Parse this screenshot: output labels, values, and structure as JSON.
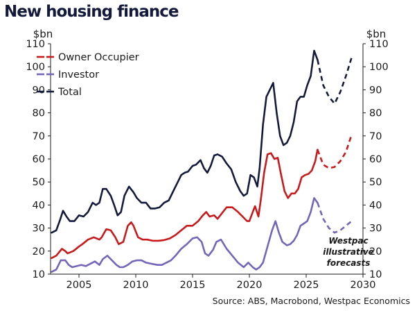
{
  "chart_data": {
    "type": "line",
    "title": "New housing finance",
    "y_unit_left": "$bn",
    "y_unit_right": "$bn",
    "ylim": [
      10,
      110
    ],
    "y_ticks": [
      10,
      20,
      30,
      40,
      50,
      60,
      70,
      80,
      90,
      100,
      110
    ],
    "xlim": [
      2002.5,
      2030
    ],
    "x_ticks": [
      2005,
      2010,
      2015,
      2020,
      2025,
      2030
    ],
    "grid": false,
    "legend_position": "top-left",
    "annotation": [
      "Westpac",
      "illustrative",
      "forecasts"
    ],
    "source": "Source: ABS, Macrobond, Westpac Economics",
    "series": [
      {
        "name": "Owner Occupier",
        "color": "#c8191b",
        "x": [
          2002.6,
          2003.0,
          2003.5,
          2003.8,
          2004.0,
          2004.5,
          2005.0,
          2005.3,
          2005.8,
          2006.3,
          2006.8,
          2007.0,
          2007.4,
          2007.8,
          2008.2,
          2008.5,
          2008.9,
          2009.3,
          2009.6,
          2009.8,
          2010.2,
          2010.6,
          2011.0,
          2011.5,
          2012.0,
          2012.5,
          2013.0,
          2013.5,
          2014.0,
          2014.5,
          2015.0,
          2015.5,
          2015.9,
          2016.2,
          2016.5,
          2016.9,
          2017.2,
          2017.6,
          2018.0,
          2018.5,
          2019.0,
          2019.4,
          2019.8,
          2020.0,
          2020.3,
          2020.5,
          2020.8,
          2021.0,
          2021.3,
          2021.6,
          2021.9,
          2022.2,
          2022.5,
          2022.8,
          2023.1,
          2023.4,
          2023.7,
          2024.0,
          2024.3,
          2024.6,
          2024.9,
          2025.2,
          2025.5,
          2025.8,
          2026.0
        ],
        "values": [
          17,
          18,
          21,
          20,
          19,
          20,
          22,
          23,
          25,
          26,
          25,
          26,
          29.5,
          29,
          26,
          23,
          24,
          31,
          32.5,
          31,
          26,
          25,
          25,
          24.5,
          24.5,
          24.8,
          25.5,
          27,
          29,
          31,
          31,
          33,
          35.5,
          37,
          35,
          35.5,
          34,
          36.5,
          39,
          39,
          37,
          35,
          33,
          33,
          37,
          39.5,
          35,
          42,
          54,
          62,
          62.5,
          60,
          60.5,
          53,
          46,
          43,
          45,
          45,
          47,
          52,
          53,
          53.5,
          55,
          59,
          64
        ],
        "forecast": {
          "x": [
            2026.0,
            2026.5,
            2027.0,
            2027.5,
            2028.0,
            2028.5,
            2029.0
          ],
          "values": [
            64,
            57.5,
            56,
            56.5,
            59,
            63,
            70.5
          ]
        }
      },
      {
        "name": "Investor",
        "color": "#7565b8",
        "x": [
          2002.6,
          2003.0,
          2003.4,
          2003.8,
          2004.1,
          2004.4,
          2004.8,
          2005.2,
          2005.6,
          2006.0,
          2006.4,
          2006.8,
          2007.1,
          2007.5,
          2007.9,
          2008.3,
          2008.6,
          2008.9,
          2009.3,
          2009.7,
          2010.1,
          2010.5,
          2010.9,
          2011.4,
          2011.9,
          2012.3,
          2012.7,
          2013.1,
          2013.5,
          2014.0,
          2014.5,
          2015.0,
          2015.4,
          2015.8,
          2016.1,
          2016.4,
          2016.8,
          2017.1,
          2017.5,
          2018.0,
          2018.5,
          2019.0,
          2019.5,
          2019.9,
          2020.3,
          2020.6,
          2020.9,
          2021.2,
          2021.6,
          2022.0,
          2022.3,
          2022.6,
          2022.9,
          2023.3,
          2023.6,
          2023.9,
          2024.2,
          2024.5,
          2024.8,
          2025.1,
          2025.4,
          2025.7,
          2026.0
        ],
        "values": [
          11,
          12,
          16,
          16,
          14,
          13,
          13.5,
          14,
          13.5,
          14.5,
          15.5,
          14,
          16.5,
          18,
          16,
          14,
          13,
          13,
          14,
          15.5,
          16,
          16,
          15,
          14.5,
          14,
          14,
          15,
          16,
          18,
          21,
          23,
          25.5,
          26,
          24,
          19,
          18,
          20.5,
          24,
          25,
          21,
          18,
          15,
          13,
          15,
          13,
          12,
          13,
          15,
          22,
          29,
          33,
          28,
          24,
          22.5,
          23,
          24.5,
          27,
          31,
          32,
          33,
          37,
          43,
          41
        ],
        "forecast": {
          "x": [
            2026.0,
            2026.5,
            2027.0,
            2027.5,
            2028.0,
            2028.5,
            2029.0
          ],
          "values": [
            41,
            34,
            30,
            28,
            29,
            31,
            33
          ]
        }
      },
      {
        "name": "Total",
        "color": "#141a3c",
        "x": [
          2002.6,
          2003.0,
          2003.3,
          2003.6,
          2003.9,
          2004.2,
          2004.6,
          2005.0,
          2005.4,
          2005.8,
          2006.2,
          2006.5,
          2006.8,
          2007.1,
          2007.4,
          2007.8,
          2008.1,
          2008.4,
          2008.7,
          2009.0,
          2009.4,
          2009.8,
          2010.1,
          2010.5,
          2010.9,
          2011.3,
          2011.7,
          2012.1,
          2012.5,
          2012.9,
          2013.3,
          2013.7,
          2014.0,
          2014.3,
          2014.6,
          2015.0,
          2015.3,
          2015.7,
          2016.0,
          2016.3,
          2016.6,
          2016.9,
          2017.2,
          2017.6,
          2018.0,
          2018.4,
          2018.8,
          2019.2,
          2019.5,
          2019.8,
          2020.1,
          2020.4,
          2020.7,
          2020.9,
          2021.2,
          2021.5,
          2021.8,
          2022.1,
          2022.4,
          2022.7,
          2023.0,
          2023.3,
          2023.6,
          2023.9,
          2024.2,
          2024.5,
          2024.8,
          2025.1,
          2025.4,
          2025.7,
          2026.0
        ],
        "values": [
          28,
          29,
          33,
          37.5,
          35,
          33,
          33,
          35.5,
          35,
          37,
          41,
          40,
          41,
          47,
          47,
          44,
          40,
          35.5,
          37,
          44,
          48,
          45.5,
          43,
          41,
          41,
          38.5,
          38.5,
          39,
          41,
          42,
          46,
          50,
          53,
          54,
          54.5,
          57,
          57.5,
          59.5,
          56,
          54,
          57,
          61.5,
          62,
          61,
          58,
          55.5,
          50,
          46,
          44,
          45,
          53,
          52,
          48,
          56,
          75,
          87,
          90,
          93,
          80,
          70,
          66,
          67,
          70,
          76,
          85,
          87,
          87,
          92,
          96,
          107,
          103
        ],
        "forecast": {
          "x": [
            2026.0,
            2026.5,
            2027.0,
            2027.5,
            2028.0,
            2028.5,
            2029.0
          ],
          "values": [
            103,
            92,
            87,
            84,
            89,
            96,
            104
          ]
        }
      }
    ]
  }
}
